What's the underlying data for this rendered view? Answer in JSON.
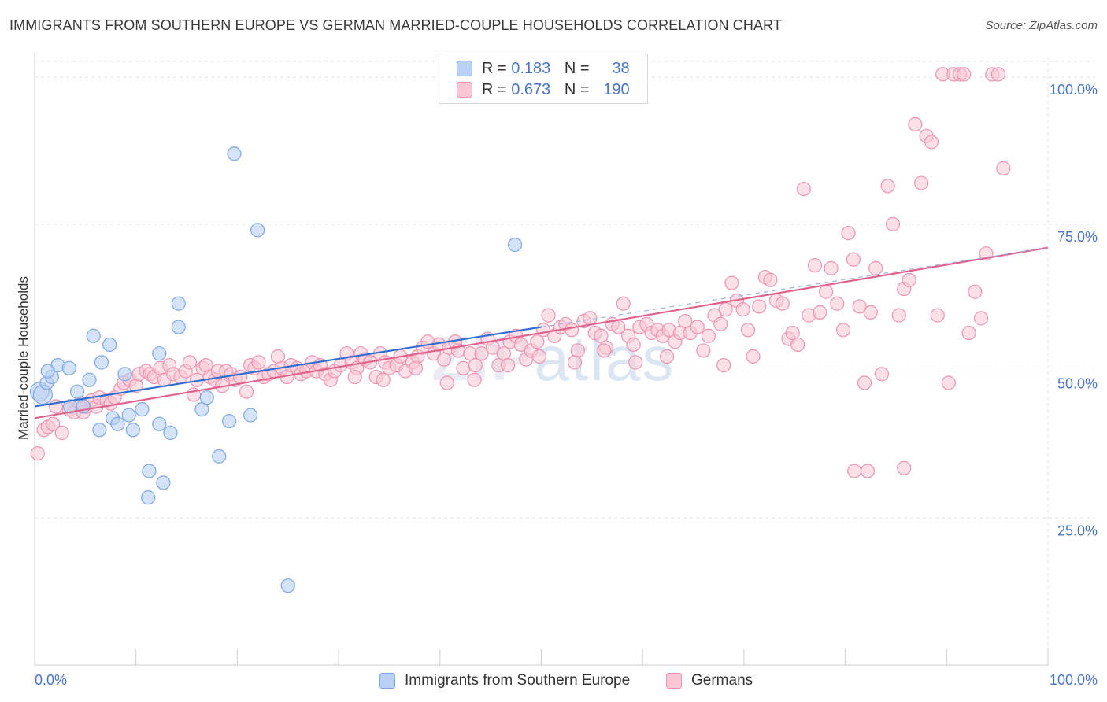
{
  "header": {
    "title": "IMMIGRANTS FROM SOUTHERN EUROPE VS GERMAN MARRIED-COUPLE HOUSEHOLDS CORRELATION CHART",
    "source": "Source: ZipAtlas.com"
  },
  "watermark": {
    "zip": "ZIP",
    "atlas": "atlas"
  },
  "legend": {
    "rows": [
      {
        "r_label": "R =",
        "r_value": "0.183",
        "n_label": "N =",
        "n_value": "38",
        "color": "#b9d1f4",
        "stroke": "#7ea7e4"
      },
      {
        "r_label": "R =",
        "r_value": "0.673",
        "n_label": "N =",
        "n_value": "190",
        "color": "#f8c6d4",
        "stroke": "#ee94b0"
      }
    ]
  },
  "bottom_legend": {
    "immigrants": "Immigrants from Southern Europe",
    "germans": "Germans"
  },
  "colors": {
    "blue_fill": "#b9d1f4",
    "blue_stroke": "#7ea7e4",
    "blue_line": "#2f6fd3",
    "pink_fill": "#f8c6d4",
    "pink_stroke": "#ee94b0",
    "pink_line": "#e0628c",
    "grid": "#e3e3e3",
    "axis_text": "#4a76c9"
  },
  "chart_data": {
    "type": "scatter",
    "title": "IMMIGRANTS FROM SOUTHERN EUROPE VS GERMAN MARRIED-COUPLE HOUSEHOLDS CORRELATION CHART",
    "xlabel": "",
    "ylabel": "Married-couple Households",
    "xlim": [
      0,
      100
    ],
    "ylim": [
      0,
      103.5
    ],
    "x_tick_labels": [
      "0.0%",
      "100.0%"
    ],
    "y_ticks": [
      25,
      50,
      75,
      100
    ],
    "y_tick_labels": [
      "25.0%",
      "50.0%",
      "75.0%",
      "100.0%"
    ],
    "grid": true,
    "series": [
      {
        "name": "Immigrants from Southern Europe",
        "R": 0.183,
        "N": 38,
        "trend": {
          "x": [
            0,
            50
          ],
          "y": [
            44.0,
            57.5
          ]
        },
        "points": [
          [
            0.5,
            46.5
          ],
          [
            0.8,
            46.0
          ],
          [
            1.2,
            48.0
          ],
          [
            1.7,
            49.0
          ],
          [
            2.3,
            51.0
          ],
          [
            1.3,
            50.0
          ],
          [
            3.4,
            50.5
          ],
          [
            3.5,
            44.0
          ],
          [
            4.2,
            46.5
          ],
          [
            4.8,
            44.0
          ],
          [
            5.4,
            48.5
          ],
          [
            5.8,
            56.0
          ],
          [
            6.6,
            51.5
          ],
          [
            7.4,
            54.5
          ],
          [
            6.4,
            40.0
          ],
          [
            7.7,
            42.0
          ],
          [
            8.2,
            41.0
          ],
          [
            8.9,
            49.5
          ],
          [
            9.3,
            42.5
          ],
          [
            9.7,
            40.0
          ],
          [
            10.6,
            43.5
          ],
          [
            11.3,
            33.0
          ],
          [
            12.3,
            41.0
          ],
          [
            12.7,
            31.0
          ],
          [
            13.4,
            39.5
          ],
          [
            14.2,
            57.5
          ],
          [
            14.2,
            61.5
          ],
          [
            11.2,
            28.5
          ],
          [
            12.3,
            53.0
          ],
          [
            16.5,
            43.5
          ],
          [
            17.0,
            45.5
          ],
          [
            18.2,
            35.5
          ],
          [
            19.2,
            41.5
          ],
          [
            19.7,
            87.0
          ],
          [
            21.3,
            42.5
          ],
          [
            22.0,
            74.0
          ],
          [
            25.0,
            13.5
          ],
          [
            47.4,
            71.5
          ]
        ]
      },
      {
        "name": "Germans",
        "R": 0.673,
        "N": 190,
        "trend": {
          "x": [
            0,
            100
          ],
          "y": [
            42.0,
            71.0
          ]
        },
        "points": [
          [
            0.3,
            36.0
          ],
          [
            0.9,
            40.0
          ],
          [
            1.3,
            40.5
          ],
          [
            1.8,
            41.0
          ],
          [
            2.1,
            44.0
          ],
          [
            2.7,
            39.5
          ],
          [
            3.4,
            43.5
          ],
          [
            3.9,
            43.0
          ],
          [
            4.5,
            44.5
          ],
          [
            4.8,
            43.0
          ],
          [
            5.1,
            44.0
          ],
          [
            5.6,
            45.0
          ],
          [
            6.1,
            44.0
          ],
          [
            6.4,
            45.5
          ],
          [
            7.1,
            45.0
          ],
          [
            7.5,
            44.5
          ],
          [
            7.9,
            45.5
          ],
          [
            8.5,
            47.0
          ],
          [
            8.8,
            48.0
          ],
          [
            9.4,
            48.5
          ],
          [
            10.0,
            47.5
          ],
          [
            10.3,
            49.5
          ],
          [
            11.0,
            50.0
          ],
          [
            11.4,
            49.5
          ],
          [
            11.8,
            49.0
          ],
          [
            12.4,
            50.5
          ],
          [
            12.8,
            48.5
          ],
          [
            13.3,
            51.0
          ],
          [
            13.7,
            49.5
          ],
          [
            14.4,
            49.0
          ],
          [
            14.9,
            50.0
          ],
          [
            15.3,
            51.5
          ],
          [
            15.7,
            46.0
          ],
          [
            16.0,
            48.5
          ],
          [
            16.6,
            50.5
          ],
          [
            16.9,
            51.0
          ],
          [
            17.3,
            49.0
          ],
          [
            17.8,
            48.5
          ],
          [
            18.1,
            50.0
          ],
          [
            18.5,
            47.5
          ],
          [
            18.9,
            50.0
          ],
          [
            19.4,
            49.5
          ],
          [
            19.8,
            48.5
          ],
          [
            20.3,
            49.0
          ],
          [
            20.9,
            46.5
          ],
          [
            21.3,
            51.0
          ],
          [
            21.7,
            50.5
          ],
          [
            22.1,
            51.5
          ],
          [
            22.6,
            49.0
          ],
          [
            23.1,
            49.5
          ],
          [
            23.6,
            50.0
          ],
          [
            24.0,
            52.5
          ],
          [
            24.4,
            50.5
          ],
          [
            24.9,
            49.0
          ],
          [
            25.3,
            51.0
          ],
          [
            25.9,
            50.5
          ],
          [
            26.3,
            49.5
          ],
          [
            26.8,
            50.0
          ],
          [
            27.4,
            51.5
          ],
          [
            27.8,
            50.0
          ],
          [
            28.2,
            51.0
          ],
          [
            28.7,
            49.5
          ],
          [
            29.2,
            48.5
          ],
          [
            29.6,
            50.0
          ],
          [
            30.2,
            51.0
          ],
          [
            30.8,
            53.0
          ],
          [
            31.3,
            51.5
          ],
          [
            31.8,
            50.5
          ],
          [
            32.2,
            53.0
          ],
          [
            32.6,
            52.0
          ],
          [
            33.1,
            51.5
          ],
          [
            33.7,
            49.0
          ],
          [
            34.1,
            53.0
          ],
          [
            34.6,
            51.5
          ],
          [
            35.0,
            50.5
          ],
          [
            35.7,
            51.0
          ],
          [
            36.1,
            52.5
          ],
          [
            36.6,
            50.0
          ],
          [
            37.3,
            51.5
          ],
          [
            37.8,
            52.5
          ],
          [
            38.3,
            54.0
          ],
          [
            38.8,
            55.0
          ],
          [
            39.4,
            53.0
          ],
          [
            39.9,
            54.5
          ],
          [
            40.4,
            52.0
          ],
          [
            40.9,
            54.0
          ],
          [
            41.5,
            55.0
          ],
          [
            41.8,
            53.5
          ],
          [
            42.3,
            50.5
          ],
          [
            43.0,
            53.0
          ],
          [
            43.5,
            51.0
          ],
          [
            44.1,
            53.0
          ],
          [
            44.7,
            55.5
          ],
          [
            45.2,
            54.0
          ],
          [
            45.8,
            51.0
          ],
          [
            46.3,
            53.0
          ],
          [
            46.9,
            55.0
          ],
          [
            47.5,
            56.0
          ],
          [
            48.0,
            54.5
          ],
          [
            48.5,
            52.0
          ],
          [
            49.0,
            53.5
          ],
          [
            49.6,
            55.0
          ],
          [
            50.2,
            57.0
          ],
          [
            50.7,
            59.5
          ],
          [
            51.3,
            56.0
          ],
          [
            51.9,
            57.5
          ],
          [
            52.4,
            58.0
          ],
          [
            53.0,
            57.0
          ],
          [
            53.6,
            53.5
          ],
          [
            54.2,
            58.5
          ],
          [
            54.8,
            59.0
          ],
          [
            55.3,
            56.5
          ],
          [
            55.9,
            56.0
          ],
          [
            56.4,
            54.0
          ],
          [
            57.0,
            58.0
          ],
          [
            57.6,
            57.5
          ],
          [
            58.1,
            61.5
          ],
          [
            58.6,
            56.0
          ],
          [
            59.1,
            54.5
          ],
          [
            59.7,
            57.5
          ],
          [
            60.4,
            58.0
          ],
          [
            60.9,
            56.5
          ],
          [
            61.5,
            57.0
          ],
          [
            62.0,
            56.0
          ],
          [
            62.6,
            57.0
          ],
          [
            63.2,
            55.0
          ],
          [
            63.7,
            56.5
          ],
          [
            64.2,
            58.5
          ],
          [
            64.7,
            56.5
          ],
          [
            65.4,
            57.5
          ],
          [
            66.0,
            53.5
          ],
          [
            66.5,
            56.0
          ],
          [
            67.1,
            59.5
          ],
          [
            67.7,
            58.0
          ],
          [
            68.2,
            60.5
          ],
          [
            68.8,
            65.0
          ],
          [
            69.3,
            62.0
          ],
          [
            69.9,
            60.5
          ],
          [
            70.4,
            57.0
          ],
          [
            70.9,
            52.5
          ],
          [
            71.5,
            61.0
          ],
          [
            72.1,
            66.0
          ],
          [
            72.6,
            65.5
          ],
          [
            73.2,
            62.0
          ],
          [
            73.8,
            61.5
          ],
          [
            74.4,
            55.5
          ],
          [
            74.8,
            56.5
          ],
          [
            75.3,
            54.5
          ],
          [
            75.9,
            81.0
          ],
          [
            76.4,
            59.5
          ],
          [
            77.0,
            68.0
          ],
          [
            77.5,
            60.0
          ],
          [
            78.1,
            63.5
          ],
          [
            78.6,
            67.5
          ],
          [
            79.2,
            61.5
          ],
          [
            79.8,
            57.0
          ],
          [
            80.3,
            73.5
          ],
          [
            80.8,
            69.0
          ],
          [
            81.4,
            61.0
          ],
          [
            81.9,
            48.0
          ],
          [
            82.5,
            60.0
          ],
          [
            83.0,
            67.5
          ],
          [
            83.6,
            49.5
          ],
          [
            84.2,
            81.5
          ],
          [
            84.7,
            75.0
          ],
          [
            85.3,
            59.5
          ],
          [
            85.8,
            64.0
          ],
          [
            86.3,
            65.5
          ],
          [
            86.9,
            92.0
          ],
          [
            87.5,
            82.0
          ],
          [
            88.0,
            90.0
          ],
          [
            88.5,
            89.0
          ],
          [
            89.1,
            59.5
          ],
          [
            89.6,
            100.5
          ],
          [
            90.2,
            48.0
          ],
          [
            90.7,
            100.5
          ],
          [
            91.3,
            100.5
          ],
          [
            91.7,
            100.5
          ],
          [
            92.2,
            56.5
          ],
          [
            92.8,
            63.5
          ],
          [
            93.4,
            59.0
          ],
          [
            93.9,
            70.0
          ],
          [
            94.5,
            100.5
          ],
          [
            95.1,
            100.5
          ],
          [
            95.6,
            84.5
          ],
          [
            80.9,
            33.0
          ],
          [
            82.2,
            33.0
          ],
          [
            85.8,
            33.5
          ],
          [
            68.0,
            51.0
          ],
          [
            62.4,
            52.5
          ],
          [
            59.3,
            51.5
          ],
          [
            56.2,
            53.5
          ],
          [
            53.3,
            51.5
          ],
          [
            49.8,
            52.5
          ],
          [
            46.7,
            51.0
          ],
          [
            43.4,
            48.5
          ],
          [
            40.7,
            48.0
          ],
          [
            37.6,
            50.5
          ],
          [
            34.4,
            48.5
          ],
          [
            31.6,
            49.0
          ]
        ]
      }
    ]
  }
}
